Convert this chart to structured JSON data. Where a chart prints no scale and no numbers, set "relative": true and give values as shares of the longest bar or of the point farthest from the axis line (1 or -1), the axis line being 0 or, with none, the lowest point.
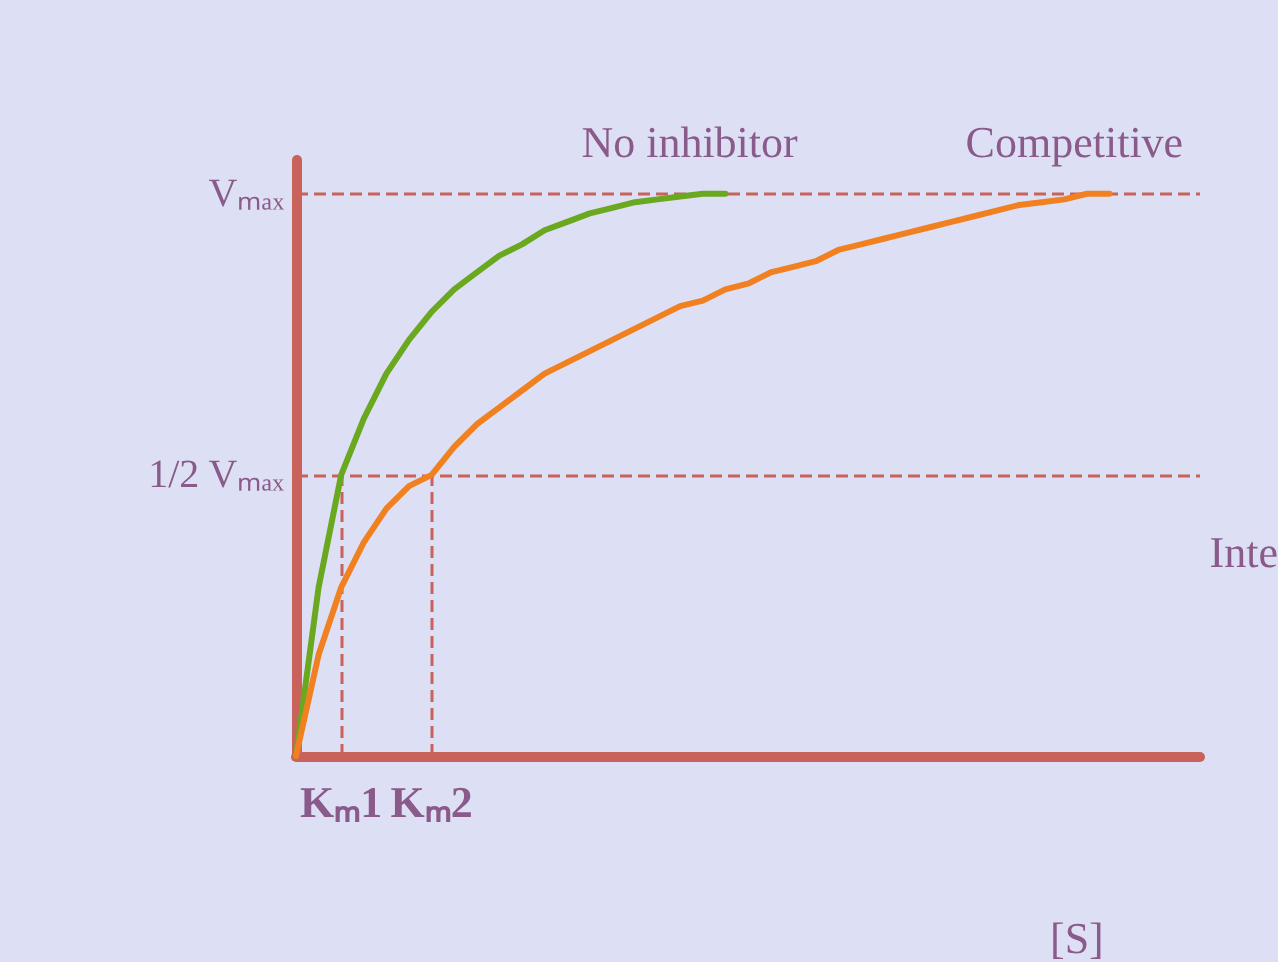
{
  "chart_data": {
    "type": "line",
    "relative": true,
    "xlabel": "[S]",
    "categories": [
      null,
      null,
      "Kₘ1",
      null,
      null,
      null,
      "Kₘ2",
      null,
      null,
      null,
      null,
      null,
      null,
      null,
      null,
      null,
      null,
      null,
      null,
      null,
      null,
      null,
      null,
      null,
      null,
      null,
      null,
      null,
      null,
      null,
      null,
      null,
      null,
      null,
      null,
      null,
      null,
      null,
      null,
      null,
      null
    ],
    "series": [
      {
        "name": "No inhibitor",
        "color": "#6aa820",
        "values": [
          0,
          0.3,
          0.5,
          0.6,
          0.68,
          0.74,
          0.79,
          0.83,
          0.86,
          0.89,
          0.91,
          0.935,
          0.95,
          0.965,
          0.975,
          0.985,
          0.99,
          0.995,
          1,
          1,
          null,
          null,
          null,
          null,
          null,
          null,
          null,
          null,
          null,
          null,
          null,
          null,
          null,
          null,
          null,
          null,
          null,
          null,
          null,
          null,
          null
        ]
      },
      {
        "name": "Competitive",
        "color": "#f08020",
        "values": [
          0,
          0.18,
          0.3,
          0.38,
          0.44,
          0.48,
          0.5,
          0.55,
          0.59,
          0.62,
          0.65,
          0.68,
          0.7,
          0.72,
          0.74,
          0.76,
          0.78,
          0.8,
          0.81,
          0.83,
          0.84,
          0.86,
          0.87,
          0.88,
          0.9,
          0.91,
          0.92,
          0.93,
          0.94,
          0.95,
          0.96,
          0.97,
          0.98,
          0.985,
          0.99,
          1,
          1,
          null,
          null,
          null,
          null
        ]
      }
    ],
    "ref_lines": [
      {
        "axis": "y",
        "value": 1,
        "label": "Vₘₐₓ",
        "color": "#c8625a",
        "line_style": "dashed"
      },
      {
        "axis": "y",
        "value": 0.5,
        "label": "1/2 Vₘₐₓ",
        "color": "#c8625a",
        "line_style": "dashed"
      },
      {
        "axis": "x",
        "value": "Kₘ1",
        "color": "#c8625a",
        "line_style": "dashed"
      },
      {
        "axis": "x",
        "value": "Kₘ2",
        "color": "#c8625a",
        "line_style": "dashed"
      }
    ],
    "annotations": [
      "Inte"
    ],
    "grid": false,
    "legend": false,
    "marker": "none",
    "line_style": "solid"
  }
}
